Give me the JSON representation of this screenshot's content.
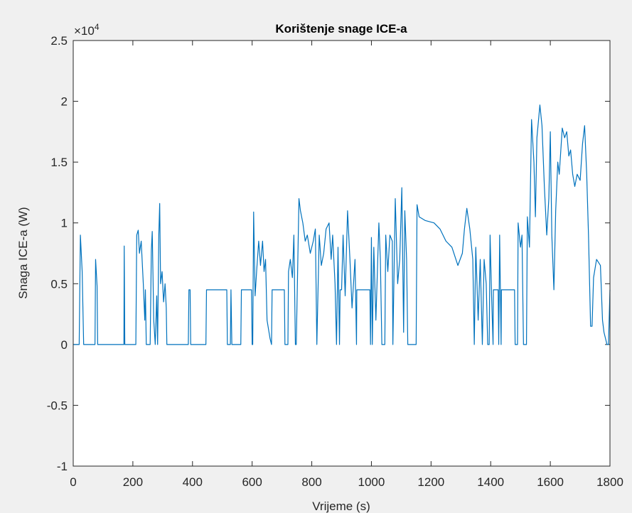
{
  "chart_data": {
    "type": "line",
    "title": "Korištenje snage ICE-a",
    "x_label": "Vrijeme (s)",
    "y_label": "Snaga ICE-a (W)",
    "y_multiplier": {
      "base": "×10",
      "exponent": "4"
    },
    "color": "#0072bd",
    "xlim": [
      0,
      1800
    ],
    "xticks": [
      0,
      200,
      400,
      600,
      800,
      1000,
      1200,
      1400,
      1600,
      1800
    ],
    "ylim": [
      -10000,
      25000
    ],
    "yticks": [
      {
        "value": -10000,
        "label": "-1"
      },
      {
        "value": -5000,
        "label": "-0.5"
      },
      0,
      {
        "value": 5000,
        "label": "0.5"
      },
      {
        "value": 10000,
        "label": "1"
      },
      {
        "value": 15000,
        "label": "1.5"
      },
      {
        "value": 20000,
        "label": "2"
      },
      {
        "value": 25000,
        "label": "2.5"
      }
    ],
    "x": [
      0,
      20,
      24,
      30,
      35,
      73,
      75,
      80,
      82,
      170,
      171,
      173,
      210,
      213,
      218,
      222,
      228,
      235,
      240,
      242,
      245,
      258,
      262,
      265,
      270,
      275,
      280,
      283,
      287,
      290,
      293,
      298,
      303,
      308,
      312,
      314,
      386,
      388,
      392,
      394,
      445,
      447,
      515,
      517,
      527,
      529,
      532,
      562,
      564,
      598,
      600,
      602,
      605,
      610,
      615,
      622,
      628,
      635,
      640,
      645,
      650,
      660,
      665,
      667,
      708,
      710,
      720,
      722,
      728,
      735,
      740,
      745,
      748,
      757,
      762,
      770,
      778,
      785,
      795,
      805,
      812,
      817,
      825,
      832,
      840,
      848,
      858,
      865,
      870,
      878,
      883,
      888,
      893,
      895,
      900,
      905,
      912,
      920,
      928,
      935,
      945,
      950,
      951,
      995,
      997,
      1000,
      1003,
      1008,
      1015,
      1025,
      1030,
      1035,
      1045,
      1048,
      1055,
      1062,
      1070,
      1072,
      1080,
      1088,
      1095,
      1102,
      1108,
      1112,
      1118,
      1122,
      1150,
      1153,
      1160,
      1180,
      1210,
      1230,
      1250,
      1270,
      1290,
      1305,
      1312,
      1320,
      1330,
      1340,
      1345,
      1350,
      1358,
      1365,
      1372,
      1378,
      1385,
      1390,
      1395,
      1398,
      1403,
      1408,
      1409,
      1425,
      1427,
      1430,
      1435,
      1436,
      1480,
      1482,
      1490,
      1492,
      1500,
      1505,
      1510,
      1520,
      1523,
      1530,
      1537,
      1545,
      1550,
      1555,
      1565,
      1572,
      1580,
      1588,
      1595,
      1600,
      1605,
      1612,
      1618,
      1625,
      1630,
      1640,
      1648,
      1655,
      1662,
      1668,
      1675,
      1682,
      1690,
      1700,
      1708,
      1715,
      1722,
      1728,
      1735,
      1740,
      1745,
      1755,
      1768,
      1775,
      1780,
      1790,
      1795,
      1800
    ],
    "values": [
      0,
      0,
      9000,
      6000,
      0,
      0,
      7000,
      4800,
      0,
      0,
      8100,
      0,
      0,
      9000,
      9400,
      7500,
      8500,
      5000,
      2000,
      4500,
      0,
      0,
      7700,
      9300,
      2000,
      0,
      4000,
      0,
      9000,
      11600,
      5000,
      6000,
      3500,
      5000,
      3000,
      0,
      0,
      4500,
      4500,
      0,
      0,
      4500,
      4500,
      0,
      0,
      4500,
      0,
      0,
      4500,
      4500,
      0,
      0,
      10900,
      4000,
      6000,
      8500,
      6500,
      8500,
      6000,
      7000,
      2000,
      500,
      0,
      4500,
      4500,
      0,
      0,
      6000,
      7000,
      5500,
      9000,
      0,
      0,
      12000,
      11000,
      10000,
      8500,
      9000,
      7500,
      8500,
      9500,
      0,
      9000,
      6500,
      7500,
      9500,
      10000,
      7000,
      9000,
      5000,
      0,
      8000,
      0,
      4500,
      4500,
      9000,
      4000,
      11000,
      7000,
      3000,
      7000,
      0,
      4500,
      4500,
      0,
      8800,
      0,
      8000,
      2000,
      10000,
      7000,
      0,
      0,
      9000,
      6000,
      9000,
      8500,
      0,
      12000,
      5000,
      7000,
      12900,
      1000,
      11000,
      7000,
      0,
      0,
      11500,
      10500,
      10200,
      10000,
      9500,
      8500,
      8000,
      6500,
      7500,
      9500,
      11200,
      9500,
      7000,
      0,
      8000,
      2000,
      7000,
      0,
      7000,
      5000,
      0,
      0,
      9000,
      4000,
      0,
      4500,
      4500,
      0,
      9000,
      0,
      4500,
      4500,
      0,
      0,
      10000,
      8000,
      9000,
      0,
      0,
      10500,
      8000,
      18500,
      15000,
      10500,
      17000,
      19700,
      18000,
      13000,
      9000,
      12000,
      17500,
      9000,
      4500,
      11000,
      15000,
      14000,
      17800,
      17000,
      17500,
      15500,
      16000,
      14000,
      13000,
      14000,
      13500,
      16500,
      18000,
      14000,
      9000,
      1500,
      1500,
      5500,
      7000,
      6500,
      2000,
      1000,
      0,
      0,
      4500
    ]
  }
}
